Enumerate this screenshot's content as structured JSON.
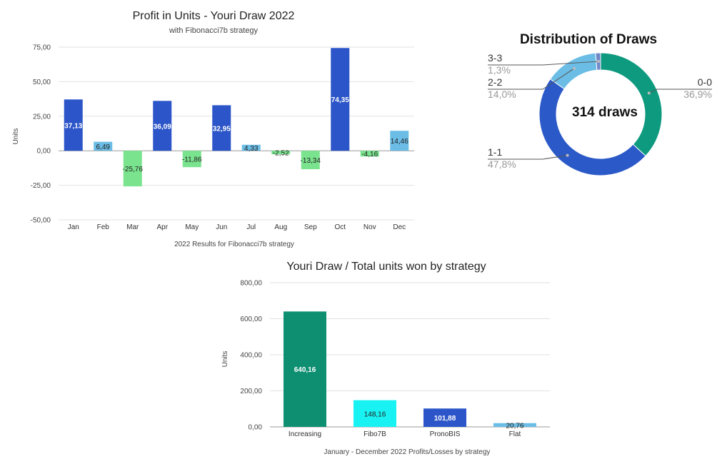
{
  "chart_data": [
    {
      "type": "bar",
      "title": "Profit in Units - Youri Draw 2022",
      "subtitle": "with Fibonacci7b strategy",
      "xlabel": "2022 Results for Fibonacci7b strategy",
      "ylabel": "Units",
      "ylim": [
        -50,
        75
      ],
      "yticks": [
        "75,00",
        "50,00",
        "25,00",
        "0,00",
        "-25,00",
        "-50,00"
      ],
      "ytick_values": [
        75,
        50,
        25,
        0,
        -25,
        -50
      ],
      "grid": true,
      "categories": [
        "Jan",
        "Feb",
        "Mar",
        "Apr",
        "May",
        "Jun",
        "Jul",
        "Aug",
        "Sep",
        "Oct",
        "Nov",
        "Dec"
      ],
      "values": [
        37.13,
        6.49,
        -25.76,
        36.09,
        -11.86,
        32.95,
        4.33,
        -2.52,
        -13.34,
        74.35,
        -4.16,
        14.46
      ],
      "labels": [
        "37,13",
        "6,49",
        "-25,76",
        "36,09",
        "-11,86",
        "32,95",
        "4,33",
        "-2,52",
        "-13,34",
        "74,35",
        "-4,16",
        "14,46"
      ],
      "colors": [
        "#2B55C8",
        "#6BBDE6",
        "#7AE38E",
        "#2B55C8",
        "#7AE38E",
        "#2B55C8",
        "#6BBDE6",
        "#7AE38E",
        "#7AE38E",
        "#2B55C8",
        "#7AE38E",
        "#6BBDE6"
      ]
    },
    {
      "type": "pie",
      "title": "Distribution of Draws",
      "center_label": "314 draws",
      "slices": [
        {
          "label": "0-0",
          "value": 36.9,
          "pct": "36,9%",
          "color": "#0E9A7F"
        },
        {
          "label": "1-1",
          "value": 47.8,
          "pct": "47,8%",
          "color": "#2B5AC8"
        },
        {
          "label": "2-2",
          "value": 14.0,
          "pct": "14,0%",
          "color": "#6BBDE6"
        },
        {
          "label": "3-3",
          "value": 1.3,
          "pct": "1,3%",
          "color": "#6E86C8"
        }
      ]
    },
    {
      "type": "bar",
      "title": "Youri Draw / Total units won by strategy",
      "xlabel": "January - December 2022 Profits/Losses by strategy",
      "ylabel": "Units",
      "ylim": [
        0,
        800
      ],
      "yticks": [
        "800,00",
        "600,00",
        "400,00",
        "200,00",
        "0,00"
      ],
      "ytick_values": [
        800,
        600,
        400,
        200,
        0
      ],
      "grid": true,
      "categories": [
        "Increasing",
        "Fibo7B",
        "PronoBIS",
        "Flat"
      ],
      "values": [
        640.16,
        148.16,
        101.88,
        20.76
      ],
      "labels": [
        "640,16",
        "148,16",
        "101,88",
        "20,76"
      ],
      "colors": [
        "#0E8F72",
        "#19F2F2",
        "#2B55C8",
        "#6BBDE6"
      ],
      "label_colors": [
        "#ffffff",
        "#222222",
        "#ffffff",
        "#222222"
      ]
    }
  ]
}
